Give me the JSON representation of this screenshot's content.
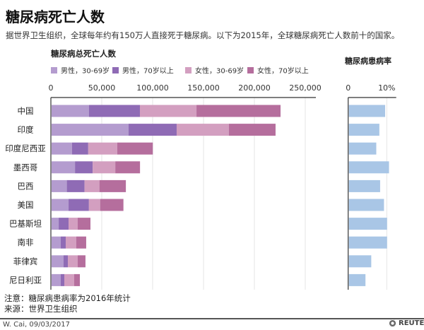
{
  "header": {
    "title": "糖尿病死亡人数",
    "subtitle": "据世界卫生组织，全球每年约有150万人直接死于糖尿病。以下为2015年，全球糖尿病死亡人数前十的国家。"
  },
  "chart_data": [
    {
      "type": "bar",
      "orientation": "horizontal",
      "stacked": true,
      "title": "糖尿病总死亡人数",
      "categories": [
        "中国",
        "印度",
        "印度尼西亚",
        "墨西哥",
        "巴西",
        "美国",
        "巴基斯坦",
        "南非",
        "菲律宾",
        "尼日利亚"
      ],
      "xlim": [
        0,
        250000
      ],
      "xticks": [
        0,
        50000,
        100000,
        150000,
        200000,
        250000
      ],
      "xtick_labels": [
        "0",
        "50,000",
        "100,000",
        "150,000",
        "200,000",
        "250,000"
      ],
      "grid": true,
      "legend_position": "top",
      "series": [
        {
          "name": "男性，30-69岁",
          "color": "#b49ccf",
          "values": [
            36800,
            75700,
            20000,
            23000,
            15000,
            16700,
            7000,
            9000,
            11800,
            9000
          ]
        },
        {
          "name": "男性，70岁以上",
          "color": "#8f6bb5",
          "values": [
            50000,
            47200,
            16000,
            17400,
            17400,
            20000,
            9700,
            4900,
            4200,
            3500
          ]
        },
        {
          "name": "女性，30-69岁",
          "color": "#d39fc0",
          "values": [
            55600,
            51400,
            28500,
            22200,
            14600,
            11000,
            9000,
            10400,
            9700,
            9700
          ]
        },
        {
          "name": "女性，70岁以上",
          "color": "#b56e9d",
          "values": [
            82600,
            45800,
            35000,
            24300,
            26000,
            22900,
            12500,
            9700,
            7600,
            5600
          ]
        }
      ]
    },
    {
      "type": "bar",
      "orientation": "horizontal",
      "title": "糖尿病患病率",
      "categories": [
        "中国",
        "印度",
        "印度尼西亚",
        "墨西哥",
        "巴西",
        "美国",
        "巴基斯坦",
        "南非",
        "菲律宾",
        "尼日利亚"
      ],
      "xlim": [
        0,
        12
      ],
      "xticks": [
        0,
        10
      ],
      "xtick_labels": [
        "0",
        "10%"
      ],
      "color": "#a9c6e6",
      "values": [
        9.4,
        7.9,
        7.1,
        10.4,
        8.1,
        9.1,
        9.9,
        9.9,
        5.8,
        4.3
      ]
    }
  ],
  "notes": {
    "note": "注意：糖尿病患病率为2016年统计",
    "source": "来源：世界卫生组织"
  },
  "footer": {
    "credit": "W. Cai, 09/03/2017",
    "logo": "REUTERS"
  }
}
